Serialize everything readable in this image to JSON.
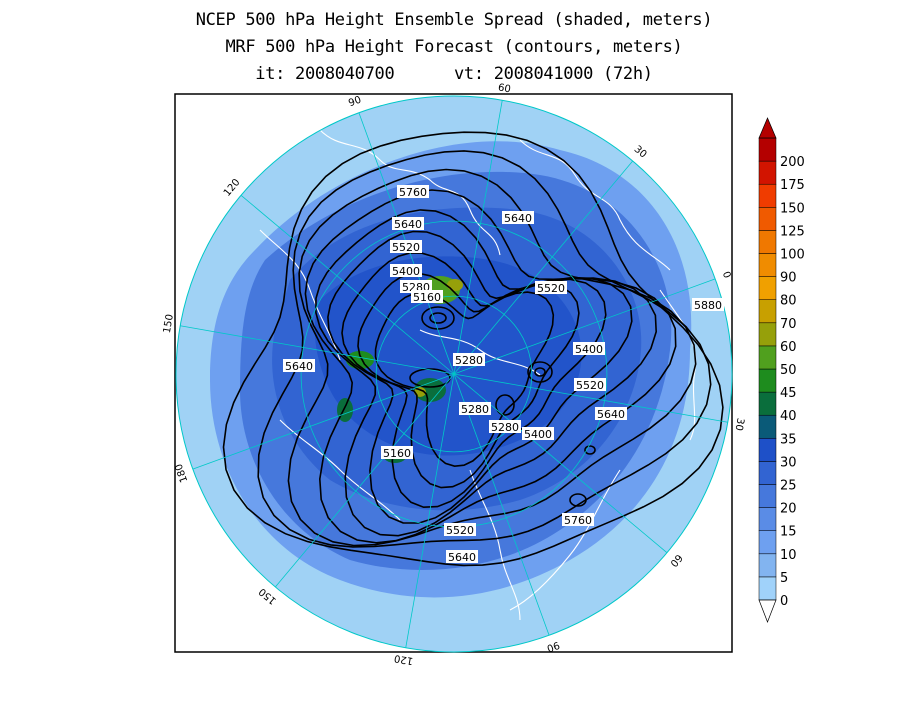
{
  "title": {
    "line1": "NCEP 500 hPa Height Ensemble Spread (shaded, meters)",
    "line2": "MRF 500 hPa Height Forecast (contours, meters)",
    "line3": "it: 2008040700      vt: 2008041000 (72h)"
  },
  "map": {
    "projection": "polar-stereographic-north",
    "longitude_labels": [
      "60",
      "30",
      "0",
      "30",
      "60",
      "90",
      "120",
      "150",
      "180",
      "150",
      "120",
      "90"
    ],
    "contour_labels": [
      "5760",
      "5640",
      "5640",
      "5520",
      "5400",
      "5280",
      "5160",
      "5520",
      "5880",
      "5640",
      "5280",
      "5400",
      "5520",
      "5280",
      "5280",
      "5640",
      "5400",
      "5160",
      "5760",
      "5520",
      "5640"
    ],
    "colors": {
      "ocean_ring": "#a0d2f5",
      "graticule": "#00c8c8",
      "coast": "#ffffff",
      "contour": "#000000"
    }
  },
  "colorbar": {
    "labels": [
      "0",
      "5",
      "10",
      "15",
      "20",
      "25",
      "30",
      "35",
      "40",
      "45",
      "50",
      "60",
      "70",
      "80",
      "90",
      "100",
      "125",
      "150",
      "175",
      "200"
    ],
    "colors": [
      "#a0d2fa",
      "#82b4f0",
      "#6ea0f0",
      "#5a8ce6",
      "#4678dc",
      "#3264d2",
      "#1e50c8",
      "#0a5a78",
      "#0a6e3c",
      "#1e8c1e",
      "#50a01e",
      "#96a00a",
      "#c8a000",
      "#f0a000",
      "#f08c00",
      "#f07800",
      "#f05a00",
      "#f03c00",
      "#d21400",
      "#b40000"
    ],
    "min_label": "0",
    "max_label": "200"
  }
}
